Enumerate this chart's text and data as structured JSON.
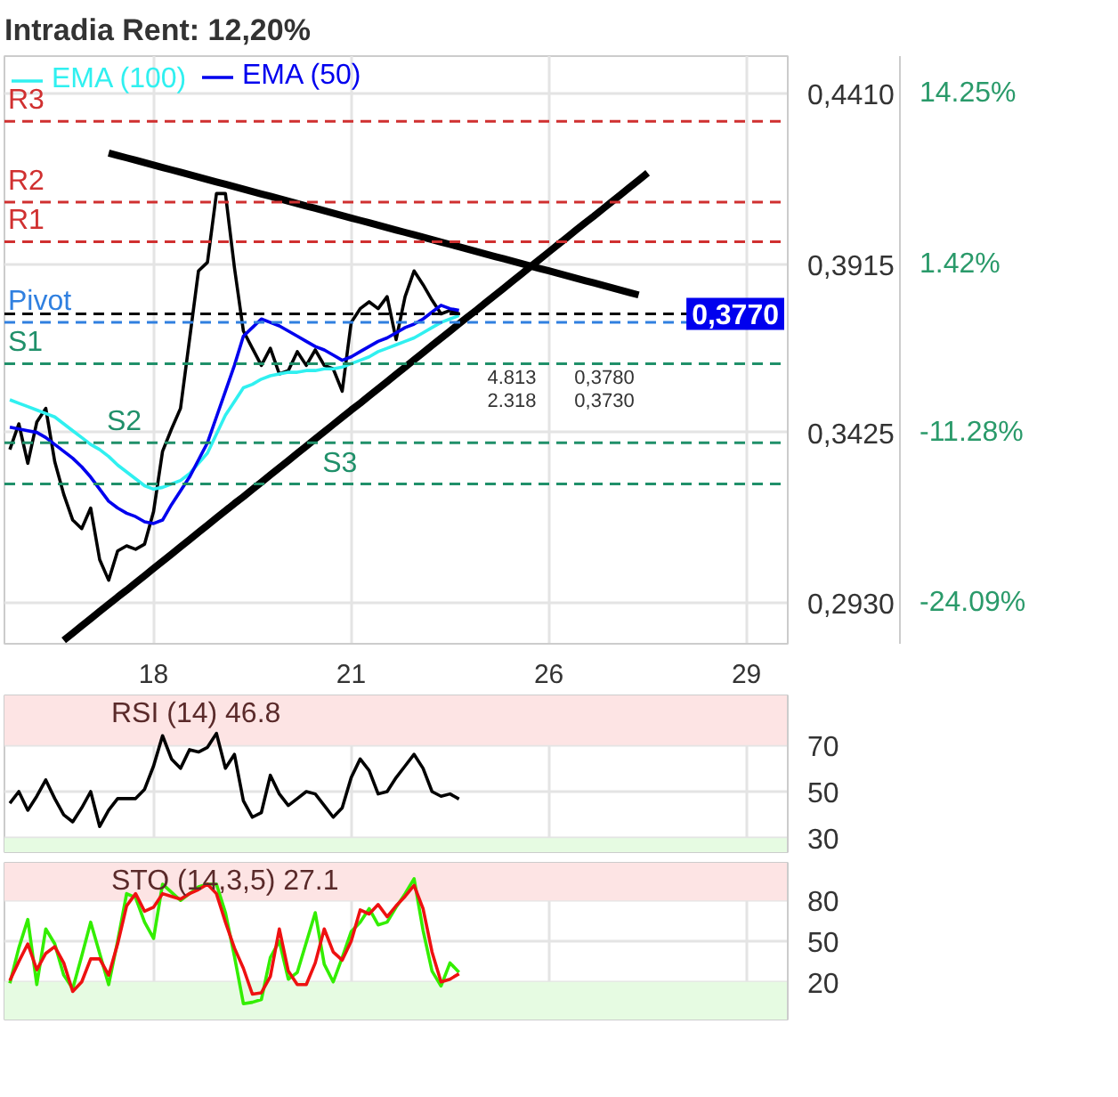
{
  "chart_data": [
    {
      "type": "line",
      "title": "Intradia  Rent:  12,20%",
      "legend": "top left",
      "grid": true,
      "categories": [
        null,
        null,
        null,
        null,
        null,
        null,
        null,
        null,
        null,
        null,
        null,
        null,
        null,
        null,
        null,
        null,
        "18",
        null,
        null,
        null,
        null,
        null,
        null,
        null,
        null,
        null,
        null,
        null,
        null,
        null,
        null,
        null,
        null,
        null,
        null,
        null,
        null,
        null,
        "21",
        null,
        null,
        null,
        null,
        null,
        null,
        null,
        null,
        null,
        null,
        null,
        null,
        null,
        null,
        null,
        null,
        null,
        null,
        null,
        null,
        null,
        "26",
        null,
        null,
        null,
        null,
        null,
        null,
        null,
        null,
        null,
        null,
        null,
        null,
        null,
        null,
        null,
        null,
        null,
        null,
        null,
        null,
        null,
        "29",
        null,
        null,
        null,
        null
      ],
      "ylim": [
        0.281,
        0.452
      ],
      "yticks": [
        {
          "value": 0.441,
          "label": "0,4410"
        },
        {
          "value": 0.3915,
          "label": "0,3915"
        },
        {
          "value": 0.3425,
          "label": "0,3425"
        },
        {
          "value": 0.293,
          "label": "0,2930"
        }
      ],
      "y2lim": [
        -27.2,
        17.1
      ],
      "y2ticks": [
        {
          "value": 14.25,
          "label": "14.25%"
        },
        {
          "value": 1.42,
          "label": "1.42%"
        },
        {
          "value": -11.28,
          "label": "-11.28%"
        },
        {
          "value": -24.09,
          "label": "-24.09%"
        }
      ],
      "series": [
        {
          "color": "#000000",
          "values": [
            0.3375,
            0.345,
            0.3335,
            0.3455,
            0.3495,
            0.334,
            0.3245,
            0.317,
            0.3145,
            0.3205,
            0.3055,
            0.2995,
            0.308,
            0.3095,
            0.3085,
            0.31,
            0.3195,
            0.337,
            0.3435,
            0.3495,
            0.3695,
            0.3895,
            0.392,
            0.412,
            0.412,
            0.3905,
            0.372,
            0.367,
            0.362,
            0.367,
            0.3595,
            0.3605,
            0.366,
            0.362,
            0.3665,
            0.362,
            0.361,
            0.3545,
            0.3745,
            0.3785,
            0.3805,
            0.3785,
            0.382,
            0.3695,
            0.382,
            0.3895,
            0.3855,
            0.381,
            0.377,
            0.378,
            0.377,
            null,
            null,
            null,
            null,
            null,
            null,
            null,
            null,
            null,
            null,
            null,
            null,
            null,
            null,
            null,
            null,
            null,
            null,
            null,
            null,
            null,
            null,
            null,
            null,
            null,
            null,
            null,
            null,
            null,
            null,
            null,
            null,
            null,
            null,
            null,
            null
          ]
        },
        {
          "name": "EMA (100)",
          "color": "#30f0f0",
          "values": [
            0.352,
            0.351,
            0.35,
            0.349,
            0.348,
            0.347,
            0.345,
            0.343,
            0.341,
            0.339,
            0.3375,
            0.3355,
            0.333,
            0.331,
            0.329,
            0.327,
            0.326,
            0.3265,
            0.3275,
            0.3285,
            0.3305,
            0.3335,
            0.3365,
            0.342,
            0.3475,
            0.3515,
            0.3555,
            0.3565,
            0.358,
            0.359,
            0.3595,
            0.36,
            0.36,
            0.3605,
            0.3605,
            0.361,
            0.361,
            0.3615,
            0.3625,
            0.3635,
            0.3645,
            0.366,
            0.367,
            0.368,
            0.369,
            0.37,
            0.3715,
            0.373,
            0.3745,
            0.3755,
            0.3765,
            null,
            null,
            null,
            null,
            null,
            null,
            null,
            null,
            null,
            null,
            null,
            null,
            null,
            null,
            null,
            null,
            null,
            null,
            null,
            null,
            null,
            null,
            null,
            null,
            null,
            null,
            null,
            null,
            null,
            null,
            null,
            null,
            null,
            null,
            null,
            null
          ]
        },
        {
          "name": "EMA (50)",
          "color": "#0000ee",
          "values": [
            0.344,
            0.3435,
            0.343,
            0.3425,
            0.341,
            0.339,
            0.337,
            0.335,
            0.3325,
            0.3295,
            0.326,
            0.3225,
            0.3205,
            0.319,
            0.318,
            0.3165,
            0.316,
            0.317,
            0.3215,
            0.3255,
            0.3295,
            0.3345,
            0.3395,
            0.347,
            0.3545,
            0.362,
            0.3705,
            0.373,
            0.3755,
            0.3745,
            0.3735,
            0.372,
            0.3705,
            0.369,
            0.3675,
            0.3665,
            0.365,
            0.3635,
            0.3645,
            0.366,
            0.3675,
            0.369,
            0.37,
            0.3715,
            0.373,
            0.374,
            0.3755,
            0.3775,
            0.3795,
            0.3785,
            0.378,
            null,
            null,
            null,
            null,
            null,
            null,
            null,
            null,
            null,
            null,
            null,
            null,
            null,
            null,
            null,
            null,
            null,
            null,
            null,
            null,
            null,
            null,
            null,
            null,
            null,
            null,
            null,
            null,
            null,
            null,
            null,
            null,
            null,
            null,
            null,
            null
          ]
        },
        {
          "color": "#000000",
          "values": [
            null,
            null,
            null,
            null,
            null,
            null,
            null,
            null,
            null,
            null,
            null,
            0.4238,
            0.4231,
            0.4224,
            0.4217,
            0.421,
            0.4203,
            0.4196,
            0.4189,
            0.4182,
            0.4175,
            0.4168,
            0.4161,
            0.4154,
            0.4147,
            0.414,
            0.4133,
            0.4126,
            0.4119,
            0.4112,
            0.4105,
            0.4098,
            0.4091,
            0.4084,
            0.4077,
            0.407,
            0.4063,
            0.4056,
            0.4049,
            0.4042,
            0.4035,
            0.4028,
            0.4021,
            0.4014,
            0.4007,
            0.4,
            0.3993,
            0.3986,
            0.3979,
            0.3972,
            0.3965,
            0.3958,
            0.3951,
            0.3944,
            0.3937,
            0.393,
            0.3923,
            0.3916,
            0.3909,
            0.3902,
            0.3895,
            0.3888,
            0.3881,
            0.3874,
            0.3867,
            0.386,
            0.3853,
            0.3846,
            0.3839,
            0.3832,
            0.3825,
            null,
            null,
            null,
            null,
            null,
            null,
            null,
            null,
            null,
            null,
            null,
            null,
            null,
            null,
            null,
            null
          ]
        },
        {
          "color": "#000000",
          "values": [
            null,
            null,
            null,
            null,
            null,
            null,
            0.282,
            0.2841,
            0.2862,
            0.2883,
            0.2904,
            0.2925,
            0.2946,
            0.2966,
            0.2987,
            0.3008,
            0.3029,
            0.305,
            0.3071,
            0.3092,
            0.3113,
            0.3134,
            0.3155,
            0.3176,
            0.3197,
            0.3218,
            0.3238,
            0.3259,
            0.328,
            0.3301,
            0.3322,
            0.3343,
            0.3364,
            0.3385,
            0.3406,
            0.3427,
            0.3448,
            0.3469,
            0.349,
            0.351,
            0.3531,
            0.3552,
            0.3573,
            0.3594,
            0.3615,
            0.3636,
            0.3657,
            0.3678,
            0.3699,
            0.372,
            0.3741,
            0.3762,
            0.3782,
            0.3803,
            0.3824,
            0.3845,
            0.3866,
            0.3887,
            0.3908,
            0.3929,
            0.395,
            0.3971,
            0.3992,
            0.4013,
            0.4034,
            0.4054,
            0.4075,
            0.4096,
            0.4117,
            0.4138,
            0.4159,
            0.418,
            null,
            null,
            null,
            null,
            null,
            null,
            null,
            null,
            null,
            null,
            null,
            null,
            null,
            null,
            null
          ]
        }
      ],
      "ref_lines": [
        {
          "axis": "y",
          "value": 0.433,
          "label": "R3",
          "color": "#d03030",
          "line_style": "dashed"
        },
        {
          "axis": "y",
          "value": 0.4095,
          "label": "R2",
          "color": "#d03030",
          "line_style": "dashed"
        },
        {
          "axis": "y",
          "value": 0.398,
          "label": "R1",
          "color": "#d03030",
          "line_style": "dashed"
        },
        {
          "axis": "y",
          "value": 0.377,
          "color": "#000000",
          "line_style": "dashed"
        },
        {
          "axis": "y",
          "value": 0.3745,
          "label": "Pivot",
          "color": "#3080e0",
          "line_style": "dashed"
        },
        {
          "axis": "y",
          "value": 0.3625,
          "label": "S1",
          "color": "#20906a",
          "line_style": "dashed"
        },
        {
          "axis": "y",
          "value": 0.3395,
          "label": "S2",
          "color": "#20906a",
          "line_style": "dashed"
        },
        {
          "axis": "y",
          "value": 0.3275,
          "label": "S3",
          "color": "#20906a",
          "line_style": "dashed"
        }
      ],
      "annotations": [
        {
          "text": "0,3770",
          "y": 0.377
        },
        "4.813",
        "0,3780",
        "2.318",
        "0,3730"
      ]
    },
    {
      "type": "line",
      "title": "RSI (14) 46.8",
      "grid": true,
      "tick_labels": "y",
      "categories": [
        null,
        null,
        null,
        null,
        null,
        null,
        null,
        null,
        null,
        null,
        null,
        null,
        null,
        null,
        null,
        null,
        "18",
        null,
        null,
        null,
        null,
        null,
        null,
        null,
        null,
        null,
        null,
        null,
        null,
        null,
        null,
        null,
        null,
        null,
        null,
        null,
        null,
        null,
        "21",
        null,
        null,
        null,
        null,
        null,
        null,
        null,
        null,
        null,
        null,
        null,
        null,
        null,
        null,
        null,
        null,
        null,
        null,
        null,
        null,
        null,
        "26",
        null,
        null,
        null,
        null,
        null,
        null,
        null,
        null,
        null,
        null,
        null,
        null,
        null,
        null,
        null,
        null,
        null,
        null,
        null,
        null,
        null,
        "29",
        null,
        null,
        null,
        null
      ],
      "ylim": [
        24,
        91.3
      ],
      "yticks": [
        30,
        50,
        70
      ],
      "bands": [
        {
          "axis": "y",
          "from": 70,
          "to": 91.3,
          "color": "#fde4e4"
        },
        {
          "axis": "y",
          "from": 24,
          "to": 30,
          "color": "#e6fbe2"
        }
      ],
      "series": [
        {
          "color": "#000000",
          "values": [
            45,
            50,
            42,
            48,
            55,
            47,
            40,
            37,
            43,
            50,
            35,
            42,
            47,
            47,
            47,
            51,
            61,
            74,
            64,
            60,
            68,
            67,
            69,
            75,
            60,
            66,
            46,
            39,
            41,
            57,
            49,
            44,
            47,
            50,
            49,
            44,
            39,
            43,
            56,
            64,
            59,
            49,
            50,
            56,
            61,
            66,
            60,
            50,
            48,
            49,
            46.8,
            null,
            null,
            null,
            null,
            null,
            null,
            null,
            null,
            null,
            null,
            null,
            null,
            null,
            null,
            null,
            null,
            null,
            null,
            null,
            null,
            null,
            null,
            null,
            null,
            null,
            null,
            null,
            null,
            null,
            null,
            null,
            null,
            null,
            null,
            null,
            null
          ]
        }
      ]
    },
    {
      "type": "line",
      "title": "STO (14,3,5) 27.1",
      "grid": true,
      "tick_labels": "y",
      "categories": [
        null,
        null,
        null,
        null,
        null,
        null,
        null,
        null,
        null,
        null,
        null,
        null,
        null,
        null,
        null,
        null,
        "18",
        null,
        null,
        null,
        null,
        null,
        null,
        null,
        null,
        null,
        null,
        null,
        null,
        null,
        null,
        null,
        null,
        null,
        null,
        null,
        null,
        null,
        "21",
        null,
        null,
        null,
        null,
        null,
        null,
        null,
        null,
        null,
        null,
        null,
        null,
        null,
        null,
        null,
        null,
        null,
        null,
        null,
        null,
        null,
        "26",
        null,
        null,
        null,
        null,
        null,
        null,
        null,
        null,
        null,
        null,
        null,
        null,
        null,
        null,
        null,
        null,
        null,
        null,
        null,
        null,
        null,
        "29",
        null,
        null,
        null,
        null
      ],
      "ylim": [
        -7.7,
        107.7
      ],
      "yticks": [
        20,
        50,
        80
      ],
      "bands": [
        {
          "axis": "y",
          "from": 80,
          "to": 107.7,
          "color": "#fde4e4"
        },
        {
          "axis": "y",
          "from": -7.7,
          "to": 20,
          "color": "#e6fbe2"
        }
      ],
      "series": [
        {
          "color": "#33ee00",
          "values": [
            19,
            45,
            66,
            18,
            59,
            48,
            25,
            15,
            39,
            64,
            41,
            18,
            50,
            85,
            82,
            64,
            52,
            92,
            86,
            80,
            85,
            90,
            92,
            92,
            71,
            39,
            4,
            5,
            7,
            38,
            50,
            22,
            27,
            49,
            71,
            33,
            20,
            38,
            57,
            64,
            74,
            62,
            64,
            75,
            85,
            96,
            58,
            28,
            17,
            34,
            27,
            null,
            null,
            null,
            null,
            null,
            null,
            null,
            null,
            null,
            null,
            null,
            null,
            null,
            null,
            null,
            null,
            null,
            null,
            null,
            null,
            null,
            null,
            null,
            null,
            null,
            null,
            null,
            null,
            null,
            null,
            null,
            null,
            null,
            null,
            null,
            null
          ]
        },
        {
          "color": "#ee1111",
          "values": [
            21,
            35,
            48,
            29,
            41,
            46,
            34,
            13,
            20,
            37,
            37,
            25,
            48,
            76,
            85,
            72,
            75,
            85,
            83,
            81,
            85,
            88,
            92,
            85,
            64,
            45,
            30,
            11,
            12,
            24,
            59,
            28,
            18,
            18,
            34,
            59,
            42,
            36,
            50,
            73,
            70,
            77,
            68,
            76,
            83,
            91,
            74,
            42,
            20,
            22,
            26,
            null,
            null,
            null,
            null,
            null,
            null,
            null,
            null,
            null,
            null,
            null,
            null,
            null,
            null,
            null,
            null,
            null,
            null,
            null,
            null,
            null,
            null,
            null,
            null,
            null,
            null,
            null,
            null,
            null,
            null,
            null,
            null,
            null,
            null,
            null,
            null
          ]
        }
      ]
    }
  ]
}
